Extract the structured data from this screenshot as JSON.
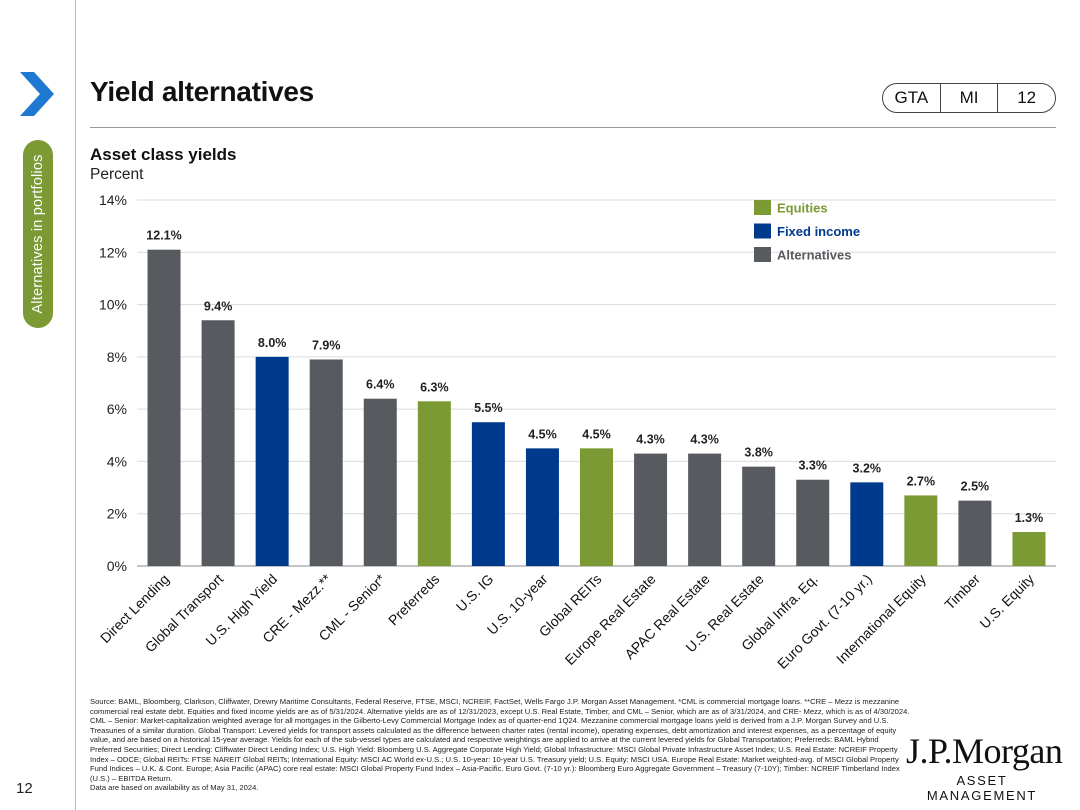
{
  "header": {
    "title": "Yield alternatives",
    "tags": [
      "GTA",
      "MI",
      "12"
    ]
  },
  "sidebar": {
    "section_label": "Alternatives in portfolios",
    "page_number": "12"
  },
  "colors": {
    "equities": "#7b9a34",
    "fixed_income": "#003a8c",
    "alternatives": "#575b60",
    "sidetab": "#7b9a34",
    "chevron": "#1f78d1"
  },
  "icons": {
    "nav": "chevron-right-icon"
  },
  "chart_data": {
    "type": "bar",
    "title": "Asset class yields",
    "subtitle": "Percent",
    "categories": [
      "Direct Lending",
      "Global Transport",
      "U.S. High Yield",
      "CRE - Mezz.**",
      "CML - Senior*",
      "Preferreds",
      "U.S. IG",
      "U.S. 10-year",
      "Global REITs",
      "Europe Real Estate",
      "APAC Real Estate",
      "U.S. Real Estate",
      "Global Infra. Eq.",
      "Euro Govt. (7-10 yr.)",
      "International Equity",
      "Timber",
      "U.S. Equity"
    ],
    "values": [
      12.1,
      9.4,
      8.0,
      7.9,
      6.4,
      6.3,
      5.5,
      4.5,
      4.5,
      4.3,
      4.3,
      3.8,
      3.3,
      3.2,
      2.7,
      2.5,
      1.3
    ],
    "value_labels": [
      "12.1%",
      "9.4%",
      "8.0%",
      "7.9%",
      "6.4%",
      "6.3%",
      "5.5%",
      "4.5%",
      "4.5%",
      "4.3%",
      "4.3%",
      "3.8%",
      "3.3%",
      "3.2%",
      "2.7%",
      "2.5%",
      "1.3%"
    ],
    "groups": [
      "Alternatives",
      "Alternatives",
      "Fixed income",
      "Alternatives",
      "Alternatives",
      "Equities",
      "Fixed income",
      "Fixed income",
      "Equities",
      "Alternatives",
      "Alternatives",
      "Alternatives",
      "Alternatives",
      "Fixed income",
      "Equities",
      "Alternatives",
      "Equities"
    ],
    "legend": [
      {
        "name": "Equities",
        "color": "#7b9a34"
      },
      {
        "name": "Fixed income",
        "color": "#003a8c"
      },
      {
        "name": "Alternatives",
        "color": "#575b60"
      }
    ],
    "legend_position": "top-right",
    "ylim": [
      0,
      14
    ],
    "yticks": [
      0,
      2,
      4,
      6,
      8,
      10,
      12,
      14
    ],
    "ytick_labels": [
      "0%",
      "2%",
      "4%",
      "6%",
      "8%",
      "10%",
      "12%",
      "14%"
    ],
    "grid": true
  },
  "footer": {
    "source": "Source: BAML, Bloomberg, Clarkson, Cliffwater, Drewry Maritime Consultants, Federal Reserve, FTSE, MSCI, NCREIF, FactSet, Wells Fargo J.P. Morgan Asset Management. *CML is commercial mortgage loans. **CRE – Mezz is mezzanine commercial real estate debt. Equities and fixed income yields are as of 5/31/2024. Alternative yields are as of 12/31/2023, except U.S. Real Estate, Timber, and CML – Senior, which are as of 3/31/2024, and CRE- Mezz, which is as of 4/30/2024. CML – Senior: Market-capitalization weighted average for all mortgages in the Gilberto-Levy Commercial Mortgage Index as of quarter-end 1Q24. Mezzanine commercial mortgage loans yield is derived from a J.P. Morgan Survey and U.S. Treasuries of a similar duration. Global Transport: Levered yields for transport assets calculated as the difference between charter rates (rental income), operating expenses, debt amortization and interest expenses, as a percentage of equity value, and are based on a historical 15-year average. Yields for each of the sub-vessel types are calculated and respective weightings are applied to arrive at the current levered yields for Global Transportation; Preferreds: BAML Hybrid Preferred Securities; Direct Lending: Cliffwater Direct Lending Index; U.S. High Yield: Bloomberg U.S. Aggregate Corporate High Yield; Global Infrastructure: MSCI Global Private Infrastructure Asset Index; U.S. Real Estate: NCREIF Property Index – ODCE; Global REITs: FTSE NAREIT Global REITs; International Equity: MSCI AC World ex-U.S.; U.S. 10-year: 10-year U.S. Treasury yield; U.S. Equity: MSCI USA. Europe Real Estate: Market weighted-avg. of MSCI Global Property Fund Indices – U.K. & Cont. Europe; Asia Pacific (APAC) core real estate: MSCI Global Property Fund Index – Asia-Pacific. Euro Govt. (7-10 yr.): Bloomberg Euro Aggregate Government – Treasury (7-10Y); Timber: NCREIF Timberland Index (U.S.) – EBITDA Return.",
    "availability": "Data are based on availability as of May 31, 2024.",
    "logo_main": "J.P.Morgan",
    "logo_sub": "ASSET MANAGEMENT"
  }
}
